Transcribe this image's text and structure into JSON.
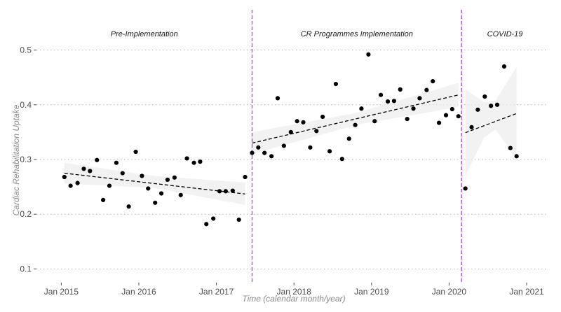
{
  "chart_data": {
    "type": "scatter",
    "title": "",
    "xlabel": "Time (calendar month/year)",
    "ylabel": "Cardiac Rehabilitation Uptake",
    "ylim": [
      0.075,
      0.525
    ],
    "yticks": [
      0.1,
      0.2,
      0.3,
      0.4,
      0.5
    ],
    "ytick_labels": [
      "0.1",
      "0.2",
      "0.3",
      "0.4",
      "0.5"
    ],
    "xlim": [
      2014.68,
      2021.28
    ],
    "xticks": [
      2015,
      2016,
      2017,
      2018,
      2019,
      2020,
      2021
    ],
    "xtick_labels": [
      "Jan 2015",
      "Jan 2016",
      "Jan 2017",
      "Jan 2018",
      "Jan 2019",
      "Jan 2020",
      "Jan 2021"
    ],
    "grid": "horizontal-dotted",
    "dividers": [
      2017.46,
      2020.16
    ],
    "periods": [
      {
        "label": "Pre-Implementation",
        "start": 2014.68,
        "end": 2017.46
      },
      {
        "label": "CR Programmes Implementation",
        "start": 2017.46,
        "end": 2020.16
      },
      {
        "label": "COVID-19",
        "start": 2020.16,
        "end": 2021.28
      }
    ],
    "segments": [
      {
        "name": "Pre-Implementation",
        "points": [
          [
            2015.04,
            0.268
          ],
          [
            2015.12,
            0.252
          ],
          [
            2015.21,
            0.257
          ],
          [
            2015.29,
            0.283
          ],
          [
            2015.37,
            0.279
          ],
          [
            2015.46,
            0.299
          ],
          [
            2015.54,
            0.226
          ],
          [
            2015.62,
            0.252
          ],
          [
            2015.71,
            0.294
          ],
          [
            2015.79,
            0.275
          ],
          [
            2015.87,
            0.214
          ],
          [
            2015.96,
            0.314
          ],
          [
            2016.04,
            0.27
          ],
          [
            2016.12,
            0.247
          ],
          [
            2016.21,
            0.221
          ],
          [
            2016.29,
            0.238
          ],
          [
            2016.37,
            0.263
          ],
          [
            2016.46,
            0.267
          ],
          [
            2016.54,
            0.235
          ],
          [
            2016.62,
            0.302
          ],
          [
            2016.71,
            0.294
          ],
          [
            2016.79,
            0.296
          ],
          [
            2016.87,
            0.182
          ],
          [
            2016.96,
            0.192
          ],
          [
            2017.04,
            0.242
          ],
          [
            2017.12,
            0.242
          ],
          [
            2017.21,
            0.243
          ],
          [
            2017.29,
            0.19
          ],
          [
            2017.37,
            0.268
          ]
        ],
        "fit": {
          "x": [
            2015.04,
            2017.37
          ],
          "y": [
            0.275,
            0.237
          ]
        },
        "band": {
          "x": [
            2015.04,
            2016.2,
            2017.37
          ],
          "upper": [
            0.294,
            0.27,
            0.258
          ],
          "lower": [
            0.256,
            0.248,
            0.217
          ]
        }
      },
      {
        "name": "CR Programmes Implementation",
        "points": [
          [
            2017.46,
            0.312
          ],
          [
            2017.54,
            0.322
          ],
          [
            2017.62,
            0.312
          ],
          [
            2017.71,
            0.306
          ],
          [
            2017.79,
            0.412
          ],
          [
            2017.87,
            0.325
          ],
          [
            2017.96,
            0.35
          ],
          [
            2018.04,
            0.37
          ],
          [
            2018.12,
            0.368
          ],
          [
            2018.21,
            0.322
          ],
          [
            2018.29,
            0.352
          ],
          [
            2018.37,
            0.378
          ],
          [
            2018.46,
            0.315
          ],
          [
            2018.54,
            0.438
          ],
          [
            2018.62,
            0.301
          ],
          [
            2018.71,
            0.338
          ],
          [
            2018.79,
            0.363
          ],
          [
            2018.87,
            0.393
          ],
          [
            2018.96,
            0.492
          ],
          [
            2019.04,
            0.37
          ],
          [
            2019.12,
            0.418
          ],
          [
            2019.21,
            0.406
          ],
          [
            2019.29,
            0.407
          ],
          [
            2019.37,
            0.428
          ],
          [
            2019.46,
            0.374
          ],
          [
            2019.54,
            0.393
          ],
          [
            2019.62,
            0.412
          ],
          [
            2019.71,
            0.427
          ],
          [
            2019.79,
            0.443
          ],
          [
            2019.87,
            0.367
          ],
          [
            2019.96,
            0.381
          ],
          [
            2020.04,
            0.392
          ],
          [
            2020.12,
            0.379
          ]
        ],
        "fit": {
          "x": [
            2017.46,
            2020.12
          ],
          "y": [
            0.33,
            0.418
          ]
        },
        "band": {
          "x": [
            2017.46,
            2018.8,
            2020.12
          ],
          "upper": [
            0.35,
            0.385,
            0.44
          ],
          "lower": [
            0.31,
            0.363,
            0.396
          ]
        }
      },
      {
        "name": "COVID-19",
        "points": [
          [
            2020.21,
            0.247
          ],
          [
            2020.29,
            0.359
          ],
          [
            2020.37,
            0.391
          ],
          [
            2020.46,
            0.415
          ],
          [
            2020.54,
            0.398
          ],
          [
            2020.62,
            0.4
          ],
          [
            2020.71,
            0.47
          ],
          [
            2020.79,
            0.321
          ],
          [
            2020.87,
            0.306
          ]
        ],
        "fit": {
          "x": [
            2020.21,
            2020.87
          ],
          "y": [
            0.349,
            0.384
          ]
        },
        "band": {
          "x": [
            2020.21,
            2020.45,
            2020.6,
            2020.87
          ],
          "upper": [
            0.428,
            0.405,
            0.408,
            0.469
          ],
          "lower": [
            0.27,
            0.34,
            0.355,
            0.3
          ]
        }
      }
    ]
  }
}
